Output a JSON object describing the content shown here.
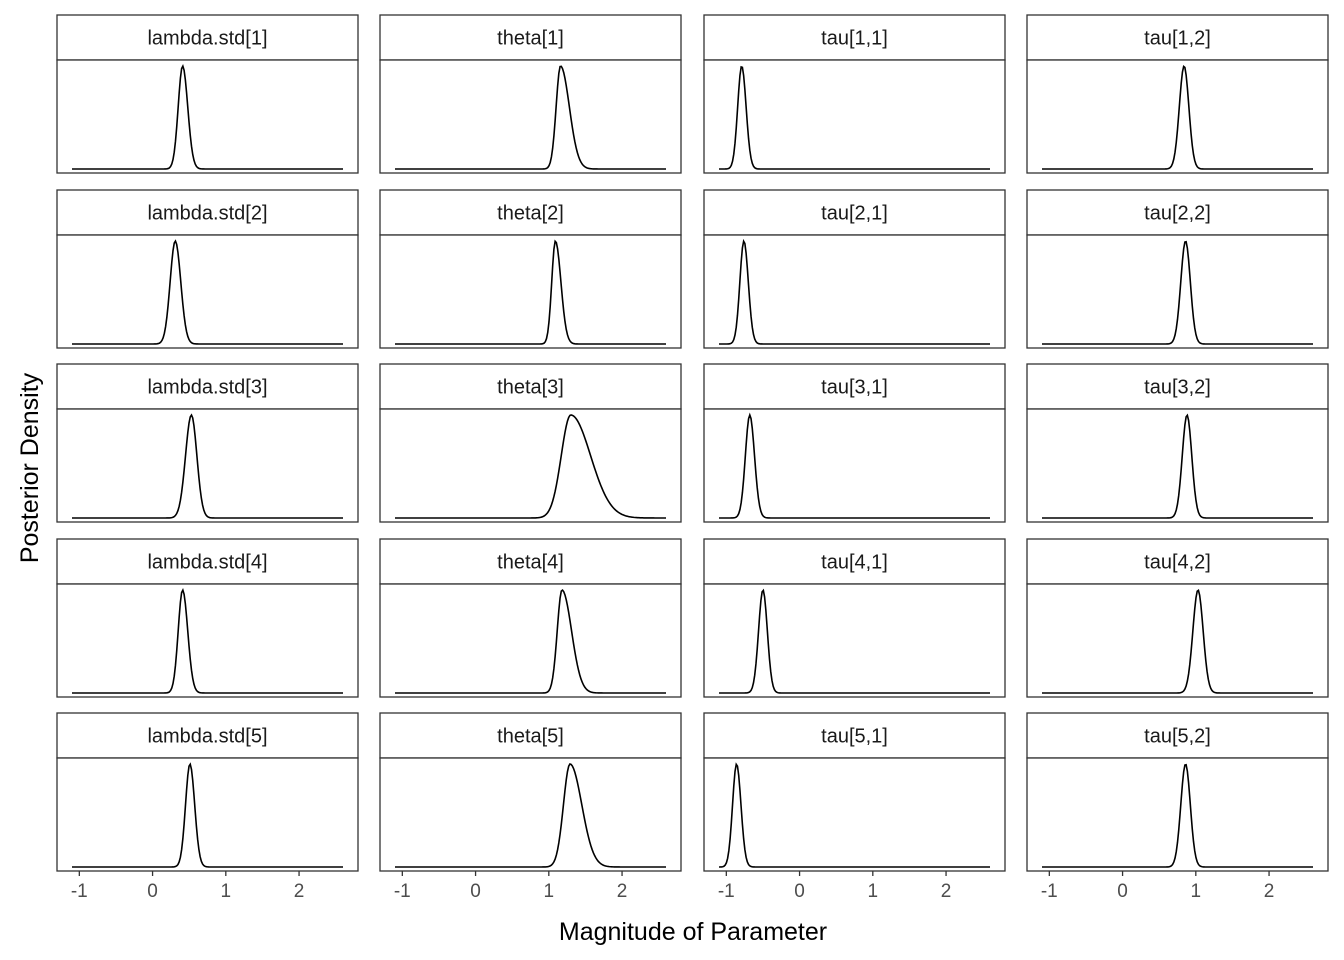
{
  "chart_data": {
    "type": "line",
    "layout": "facet-grid 5x4",
    "xlabel": "Magnitude of Parameter",
    "ylabel": "Posterior Density",
    "xlim": [
      -1.1,
      2.6
    ],
    "x_ticks": [
      -1,
      0,
      1,
      2
    ],
    "x_tick_labels": [
      "-1",
      "0",
      "1",
      "2"
    ],
    "y_axis_ticks_shown": false,
    "free_y_scales": true,
    "grid": false,
    "line_color": "#000000",
    "panels": [
      {
        "label": "lambda.std[1]",
        "mode": 0.41,
        "sd_left": 0.06,
        "sd_right": 0.07
      },
      {
        "label": "theta[1]",
        "mode": 1.16,
        "sd_left": 0.06,
        "sd_right": 0.12
      },
      {
        "label": "tau[1,1]",
        "mode": -0.79,
        "sd_left": 0.055,
        "sd_right": 0.06
      },
      {
        "label": "tau[1,2]",
        "mode": 0.84,
        "sd_left": 0.065,
        "sd_right": 0.065
      },
      {
        "label": "lambda.std[2]",
        "mode": 0.31,
        "sd_left": 0.07,
        "sd_right": 0.075
      },
      {
        "label": "theta[2]",
        "mode": 1.09,
        "sd_left": 0.05,
        "sd_right": 0.075
      },
      {
        "label": "tau[2,1]",
        "mode": -0.76,
        "sd_left": 0.055,
        "sd_right": 0.06
      },
      {
        "label": "tau[2,2]",
        "mode": 0.86,
        "sd_left": 0.065,
        "sd_right": 0.065
      },
      {
        "label": "lambda.std[3]",
        "mode": 0.53,
        "sd_left": 0.08,
        "sd_right": 0.075
      },
      {
        "label": "theta[3]",
        "mode": 1.3,
        "sd_left": 0.13,
        "sd_right": 0.27
      },
      {
        "label": "tau[3,1]",
        "mode": -0.68,
        "sd_left": 0.06,
        "sd_right": 0.065
      },
      {
        "label": "tau[3,2]",
        "mode": 0.88,
        "sd_left": 0.065,
        "sd_right": 0.065
      },
      {
        "label": "lambda.std[4]",
        "mode": 0.41,
        "sd_left": 0.06,
        "sd_right": 0.07
      },
      {
        "label": "theta[4]",
        "mode": 1.18,
        "sd_left": 0.065,
        "sd_right": 0.13
      },
      {
        "label": "tau[4,1]",
        "mode": -0.5,
        "sd_left": 0.06,
        "sd_right": 0.06
      },
      {
        "label": "tau[4,2]",
        "mode": 1.03,
        "sd_left": 0.07,
        "sd_right": 0.07
      },
      {
        "label": "lambda.std[5]",
        "mode": 0.51,
        "sd_left": 0.06,
        "sd_right": 0.065
      },
      {
        "label": "theta[5]",
        "mode": 1.29,
        "sd_left": 0.09,
        "sd_right": 0.16
      },
      {
        "label": "tau[5,1]",
        "mode": -0.86,
        "sd_left": 0.055,
        "sd_right": 0.06
      },
      {
        "label": "tau[5,2]",
        "mode": 0.86,
        "sd_left": 0.065,
        "sd_right": 0.065
      }
    ]
  }
}
